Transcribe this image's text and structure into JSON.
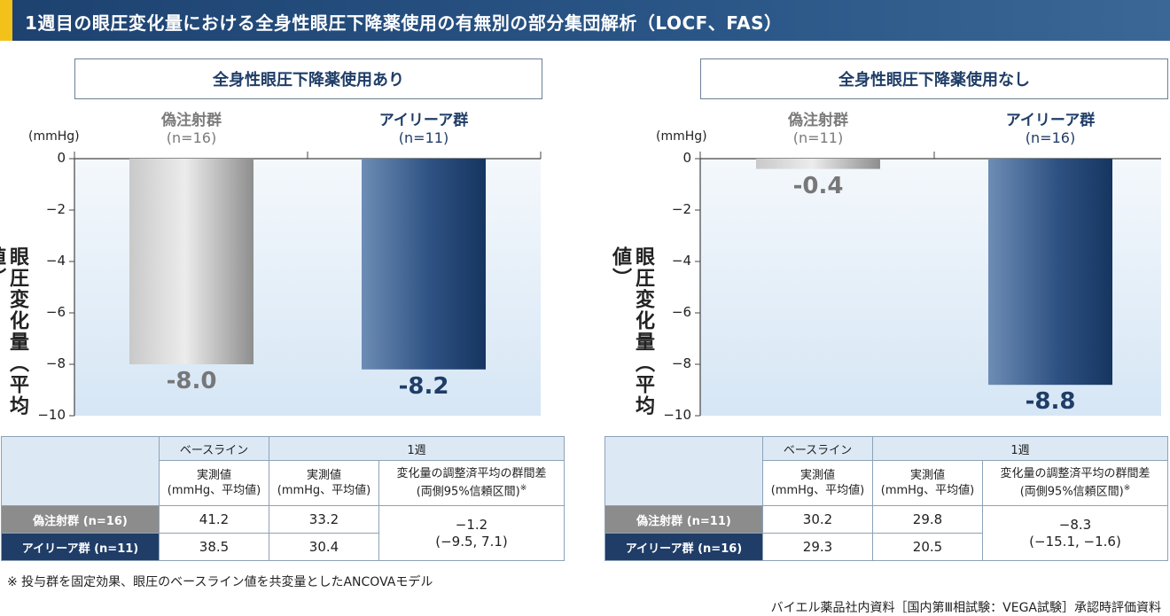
{
  "title": "1週目の眼圧変化量における全身性眼圧下降薬使用の有無別の部分集団解析（LOCF、FAS）",
  "colors": {
    "sham": "#9a9a9a",
    "aflibercept": "#1f3d67",
    "accent": "#f3c21a"
  },
  "chart_data": [
    {
      "type": "bar",
      "title": "全身性眼圧下降薬使用あり",
      "ylabel": "眼圧変化量（平均値）",
      "unit": "(mmHg)",
      "ylim": [
        -10,
        0
      ],
      "yticks": [
        "0",
        "−2",
        "−4",
        "−6",
        "−8",
        "−10"
      ],
      "categories": [
        {
          "name": "偽注射群",
          "n": "(n=16)"
        },
        {
          "name": "アイリーア群",
          "n": "(n=11)"
        }
      ],
      "values": [
        -8.0,
        -8.2
      ],
      "value_labels": [
        "-8.0",
        "-8.2"
      ]
    },
    {
      "type": "bar",
      "title": "全身性眼圧下降薬使用なし",
      "ylabel": "眼圧変化量（平均値）",
      "unit": "(mmHg)",
      "ylim": [
        -10,
        0
      ],
      "yticks": [
        "0",
        "−2",
        "−4",
        "−6",
        "−8",
        "−10"
      ],
      "categories": [
        {
          "name": "偽注射群",
          "n": "(n=11)"
        },
        {
          "name": "アイリーア群",
          "n": "(n=16)"
        }
      ],
      "values": [
        -0.4,
        -8.8
      ],
      "value_labels": [
        "-0.4",
        "-8.8"
      ]
    }
  ],
  "tables": [
    {
      "head": {
        "baseline": "ベースライン",
        "week1": "1週",
        "measured": "実測値",
        "measured_sub": "(mmHg、平均値)",
        "diff": "変化量の調整済平均の群間差",
        "diff_sub": "(両側95%信頼区間)",
        "diff_mark": "※"
      },
      "rows": [
        {
          "label": "偽注射群 (n=16)",
          "baseline": "41.2",
          "week1": "33.2"
        },
        {
          "label": "アイリーア群 (n=11)",
          "baseline": "38.5",
          "week1": "30.4"
        }
      ],
      "diff_value": "−1.2",
      "diff_ci": "(−9.5, 7.1)"
    },
    {
      "head": {
        "baseline": "ベースライン",
        "week1": "1週",
        "measured": "実測値",
        "measured_sub": "(mmHg、平均値)",
        "diff": "変化量の調整済平均の群間差",
        "diff_sub": "(両側95%信頼区間)",
        "diff_mark": "※"
      },
      "rows": [
        {
          "label": "偽注射群 (n=11)",
          "baseline": "30.2",
          "week1": "29.8"
        },
        {
          "label": "アイリーア群 (n=16)",
          "baseline": "29.3",
          "week1": "20.5"
        }
      ],
      "diff_value": "−8.3",
      "diff_ci": "(−15.1, −1.6)"
    }
  ],
  "footnote": "※ 投与群を固定効果、眼圧のベースライン値を共変量としたANCOVAモデル",
  "source": "バイエル薬品社内資料［国内第Ⅲ相試験：VEGA試験］承認時評価資料"
}
